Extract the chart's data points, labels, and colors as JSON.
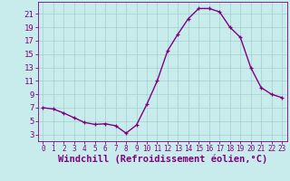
{
  "x": [
    0,
    1,
    2,
    3,
    4,
    5,
    6,
    7,
    8,
    9,
    10,
    11,
    12,
    13,
    14,
    15,
    16,
    17,
    18,
    19,
    20,
    21,
    22,
    23
  ],
  "y": [
    7.0,
    6.8,
    6.2,
    5.5,
    4.8,
    4.5,
    4.6,
    4.3,
    3.2,
    4.4,
    7.5,
    11.0,
    15.5,
    18.0,
    20.3,
    21.8,
    21.8,
    21.3,
    19.0,
    17.5,
    13.0,
    10.0,
    9.0,
    8.5
  ],
  "line_color": "#800080",
  "marker": "+",
  "marker_size": 3.5,
  "marker_lw": 0.9,
  "bg_color": "#c8ecec",
  "grid_color": "#a0d0d0",
  "xlabel": "Windchill (Refroidissement éolien,°C)",
  "xlabel_color": "#800080",
  "xlabel_fontsize": 7.5,
  "xlim": [
    -0.5,
    23.5
  ],
  "ylim": [
    2.0,
    22.8
  ],
  "yticks": [
    3,
    5,
    7,
    9,
    11,
    13,
    15,
    17,
    19,
    21
  ],
  "xticks": [
    0,
    1,
    2,
    3,
    4,
    5,
    6,
    7,
    8,
    9,
    10,
    11,
    12,
    13,
    14,
    15,
    16,
    17,
    18,
    19,
    20,
    21,
    22,
    23
  ],
  "tick_color": "#800080",
  "ytick_fontsize": 6.5,
  "xtick_fontsize": 5.5,
  "spine_color": "#800080",
  "line_width": 1.0
}
